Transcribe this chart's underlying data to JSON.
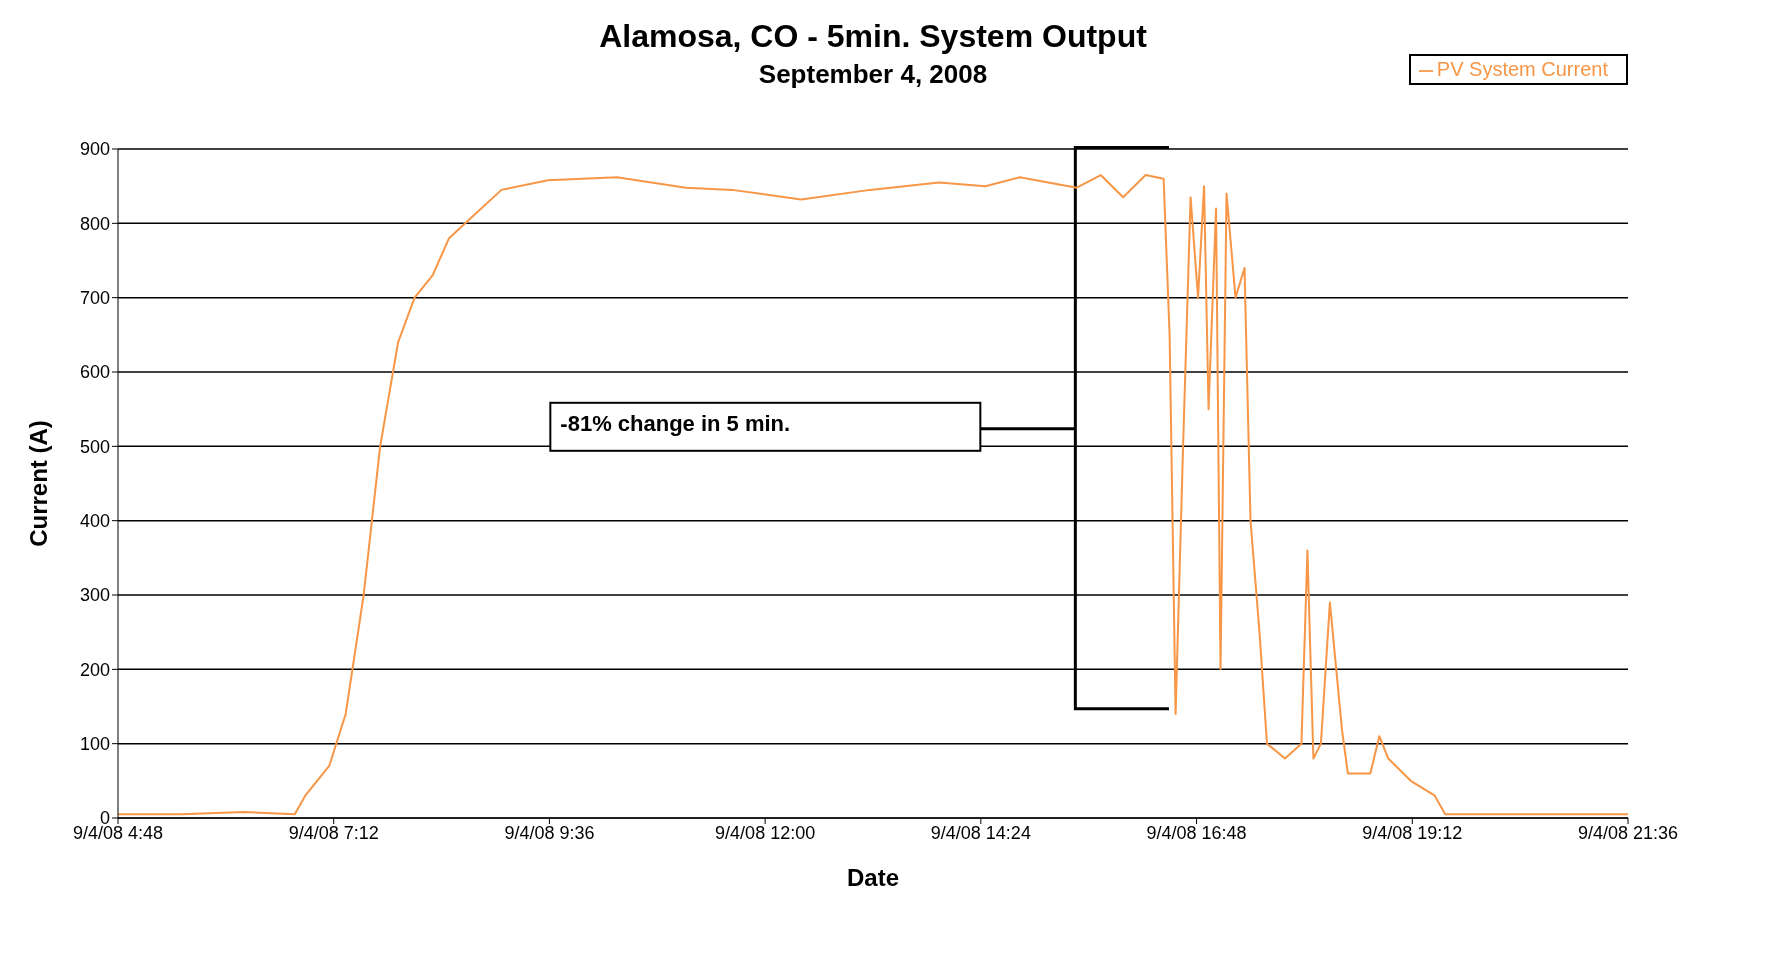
{
  "chart_data": {
    "type": "line",
    "title": "Alamosa, CO - 5min. System Output",
    "subtitle": "September 4, 2008",
    "xlabel": "Date",
    "ylabel": "Current (A)",
    "annotations": [
      "-81% change in 5 min."
    ],
    "x": [
      "2008-09-04T04:48",
      "2008-09-04T05:30",
      "2008-09-04T06:12",
      "2008-09-04T06:46",
      "2008-09-04T06:53",
      "2008-09-04T07:09",
      "2008-09-04T07:20",
      "2008-09-04T07:32",
      "2008-09-04T07:43",
      "2008-09-04T07:55",
      "2008-09-04T08:06",
      "2008-09-04T08:18",
      "2008-09-04T08:29",
      "2008-09-04T08:45",
      "2008-09-04T09:04",
      "2008-09-04T09:35",
      "2008-09-04T10:21",
      "2008-09-04T11:07",
      "2008-09-04T11:38",
      "2008-09-04T12:24",
      "2008-09-04T13:10",
      "2008-09-04T13:56",
      "2008-09-04T14:27",
      "2008-09-04T14:50",
      "2008-09-04T15:28",
      "2008-09-04T15:44",
      "2008-09-04T15:59",
      "2008-09-04T16:14",
      "2008-09-04T16:26",
      "2008-09-04T16:30",
      "2008-09-04T16:34",
      "2008-09-04T16:39",
      "2008-09-04T16:44",
      "2008-09-04T16:49",
      "2008-09-04T16:53",
      "2008-09-04T16:56",
      "2008-09-04T17:01",
      "2008-09-04T17:04",
      "2008-09-04T17:08",
      "2008-09-04T17:14",
      "2008-09-04T17:20",
      "2008-09-04T17:24",
      "2008-09-04T17:30",
      "2008-09-04T17:35",
      "2008-09-04T17:47",
      "2008-09-04T17:58",
      "2008-09-04T18:02",
      "2008-09-04T18:06",
      "2008-09-04T18:11",
      "2008-09-04T18:17",
      "2008-09-04T18:25",
      "2008-09-04T18:29",
      "2008-09-04T18:44",
      "2008-09-04T18:50",
      "2008-09-04T18:56",
      "2008-09-04T19:11",
      "2008-09-04T19:27",
      "2008-09-04T19:34",
      "2008-09-04T20:30",
      "2008-09-04T21:36"
    ],
    "series": [
      {
        "name": "PV System Current",
        "color": "#f79646",
        "values": [
          5,
          5,
          8,
          5,
          30,
          70,
          140,
          300,
          500,
          640,
          700,
          730,
          780,
          810,
          845,
          858,
          862,
          848,
          845,
          832,
          845,
          855,
          850,
          862,
          848,
          865,
          835,
          865,
          860,
          650,
          140,
          500,
          835,
          700,
          850,
          550,
          820,
          200,
          840,
          700,
          740,
          400,
          250,
          100,
          80,
          100,
          360,
          80,
          100,
          290,
          120,
          60,
          60,
          110,
          80,
          50,
          30,
          5,
          5,
          5
        ]
      }
    ],
    "xlim": [
      "2008-09-04T04:48",
      "2008-09-04T21:36"
    ],
    "xticks": [
      {
        "value": "2008-09-04T04:48",
        "label": "9/4/08 4:48"
      },
      {
        "value": "2008-09-04T07:12",
        "label": "9/4/08 7:12"
      },
      {
        "value": "2008-09-04T09:36",
        "label": "9/4/08 9:36"
      },
      {
        "value": "2008-09-04T12:00",
        "label": "9/4/08 12:00"
      },
      {
        "value": "2008-09-04T14:24",
        "label": "9/4/08 14:24"
      },
      {
        "value": "2008-09-04T16:48",
        "label": "9/4/08 16:48"
      },
      {
        "value": "2008-09-04T19:12",
        "label": "9/4/08 19:12"
      },
      {
        "value": "2008-09-04T21:36",
        "label": "9/4/08 21:36"
      }
    ],
    "ylim": [
      0,
      900
    ],
    "yticks": [
      0,
      100,
      200,
      300,
      400,
      500,
      600,
      700,
      800,
      900
    ],
    "grid": "y",
    "legend": "top right",
    "marker": "none",
    "line_style": "solid"
  }
}
